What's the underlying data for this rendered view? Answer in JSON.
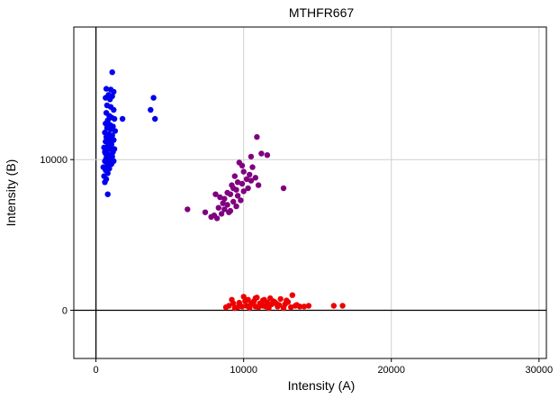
{
  "chart_data": {
    "type": "scatter",
    "title": "MTHFR667",
    "xlabel": "Intensity (A)",
    "ylabel": "Intensity (B)",
    "xlim": [
      -1500,
      30500
    ],
    "ylim": [
      -3200,
      18800
    ],
    "xticks": [
      0,
      10000,
      20000,
      30000
    ],
    "yticks": [
      0,
      10000
    ],
    "grid": true,
    "legend": "none",
    "series": [
      {
        "color": "#0000ee",
        "points": [
          [
            1100,
            15800
          ],
          [
            700,
            14700
          ],
          [
            1000,
            14650
          ],
          [
            1200,
            14500
          ],
          [
            850,
            14300
          ],
          [
            1100,
            14200
          ],
          [
            650,
            14100
          ],
          [
            950,
            14000
          ],
          [
            750,
            13600
          ],
          [
            1000,
            13500
          ],
          [
            1200,
            13300
          ],
          [
            700,
            13100
          ],
          [
            900,
            12900
          ],
          [
            1050,
            12800
          ],
          [
            1250,
            12700
          ],
          [
            800,
            12600
          ],
          [
            650,
            12400
          ],
          [
            950,
            12300
          ],
          [
            1150,
            12200
          ],
          [
            750,
            12100
          ],
          [
            1000,
            12000
          ],
          [
            600,
            11800
          ],
          [
            850,
            11700
          ],
          [
            1100,
            11600
          ],
          [
            700,
            11500
          ],
          [
            950,
            11400
          ],
          [
            1200,
            11300
          ],
          [
            650,
            11200
          ],
          [
            900,
            11100
          ],
          [
            1050,
            11000
          ],
          [
            800,
            10900
          ],
          [
            550,
            10800
          ],
          [
            1000,
            10700
          ],
          [
            750,
            10600
          ],
          [
            1150,
            10500
          ],
          [
            650,
            10400
          ],
          [
            900,
            10300
          ],
          [
            1100,
            10200
          ],
          [
            700,
            10100
          ],
          [
            950,
            10000
          ],
          [
            600,
            9900
          ],
          [
            850,
            9800
          ],
          [
            1050,
            9700
          ],
          [
            750,
            9600
          ],
          [
            500,
            9500
          ],
          [
            900,
            9400
          ],
          [
            650,
            9300
          ],
          [
            800,
            9100
          ],
          [
            550,
            8900
          ],
          [
            700,
            8700
          ],
          [
            600,
            8500
          ],
          [
            800,
            7700
          ],
          [
            1800,
            12700
          ],
          [
            3700,
            13300
          ],
          [
            3900,
            14100
          ],
          [
            4000,
            12700
          ],
          [
            1300,
            11900
          ],
          [
            1250,
            10700
          ],
          [
            600,
            10500
          ],
          [
            1200,
            9900
          ]
        ]
      },
      {
        "color": "#800080",
        "points": [
          [
            10900,
            11500
          ],
          [
            11600,
            10300
          ],
          [
            11200,
            10400
          ],
          [
            10500,
            10200
          ],
          [
            9700,
            9800
          ],
          [
            9900,
            9600
          ],
          [
            10600,
            9500
          ],
          [
            10000,
            9200
          ],
          [
            10400,
            9000
          ],
          [
            9400,
            8900
          ],
          [
            10800,
            8800
          ],
          [
            10200,
            8700
          ],
          [
            9600,
            8500
          ],
          [
            9900,
            8400
          ],
          [
            11000,
            8300
          ],
          [
            12700,
            8100
          ],
          [
            9300,
            8100
          ],
          [
            10300,
            8100
          ],
          [
            9500,
            8000
          ],
          [
            10000,
            7900
          ],
          [
            8900,
            7800
          ],
          [
            8100,
            7700
          ],
          [
            9100,
            7700
          ],
          [
            8400,
            7500
          ],
          [
            8700,
            7400
          ],
          [
            9800,
            7300
          ],
          [
            9300,
            7200
          ],
          [
            8600,
            7100
          ],
          [
            8900,
            7000
          ],
          [
            9500,
            6900
          ],
          [
            8300,
            6800
          ],
          [
            8700,
            6700
          ],
          [
            6200,
            6700
          ],
          [
            9100,
            6600
          ],
          [
            7400,
            6500
          ],
          [
            8500,
            6400
          ],
          [
            8000,
            6300
          ],
          [
            7800,
            6200
          ],
          [
            8200,
            6100
          ],
          [
            9000,
            6500
          ],
          [
            9600,
            7600
          ],
          [
            10500,
            8600
          ],
          [
            9200,
            8300
          ]
        ]
      },
      {
        "color": "#ee0000",
        "points": [
          [
            13300,
            1000
          ],
          [
            10000,
            900
          ],
          [
            10900,
            850
          ],
          [
            11800,
            800
          ],
          [
            12500,
            750
          ],
          [
            9200,
            700
          ],
          [
            10300,
            700
          ],
          [
            11300,
            650
          ],
          [
            12000,
            600
          ],
          [
            13000,
            550
          ],
          [
            9700,
            500
          ],
          [
            10600,
            500
          ],
          [
            11100,
            450
          ],
          [
            11900,
            400
          ],
          [
            12800,
            400
          ],
          [
            13600,
            350
          ],
          [
            14400,
            300
          ],
          [
            9000,
            300
          ],
          [
            10200,
            300
          ],
          [
            10800,
            250
          ],
          [
            11500,
            250
          ],
          [
            12300,
            250
          ],
          [
            13200,
            200
          ],
          [
            8800,
            200
          ],
          [
            9600,
            200
          ],
          [
            10400,
            150
          ],
          [
            11700,
            150
          ],
          [
            12700,
            150
          ],
          [
            16100,
            300
          ],
          [
            16700,
            300
          ],
          [
            14100,
            250
          ],
          [
            9300,
            450
          ],
          [
            10700,
            600
          ],
          [
            12100,
            550
          ],
          [
            12900,
            650
          ],
          [
            11300,
            300
          ],
          [
            9900,
            250
          ],
          [
            10500,
            400
          ],
          [
            11600,
            500
          ],
          [
            12400,
            350
          ],
          [
            13500,
            300
          ],
          [
            10100,
            600
          ],
          [
            11000,
            200
          ],
          [
            12200,
            450
          ],
          [
            9400,
            150
          ],
          [
            13800,
            250
          ],
          [
            11400,
            700
          ],
          [
            10800,
            800
          ]
        ]
      }
    ]
  }
}
